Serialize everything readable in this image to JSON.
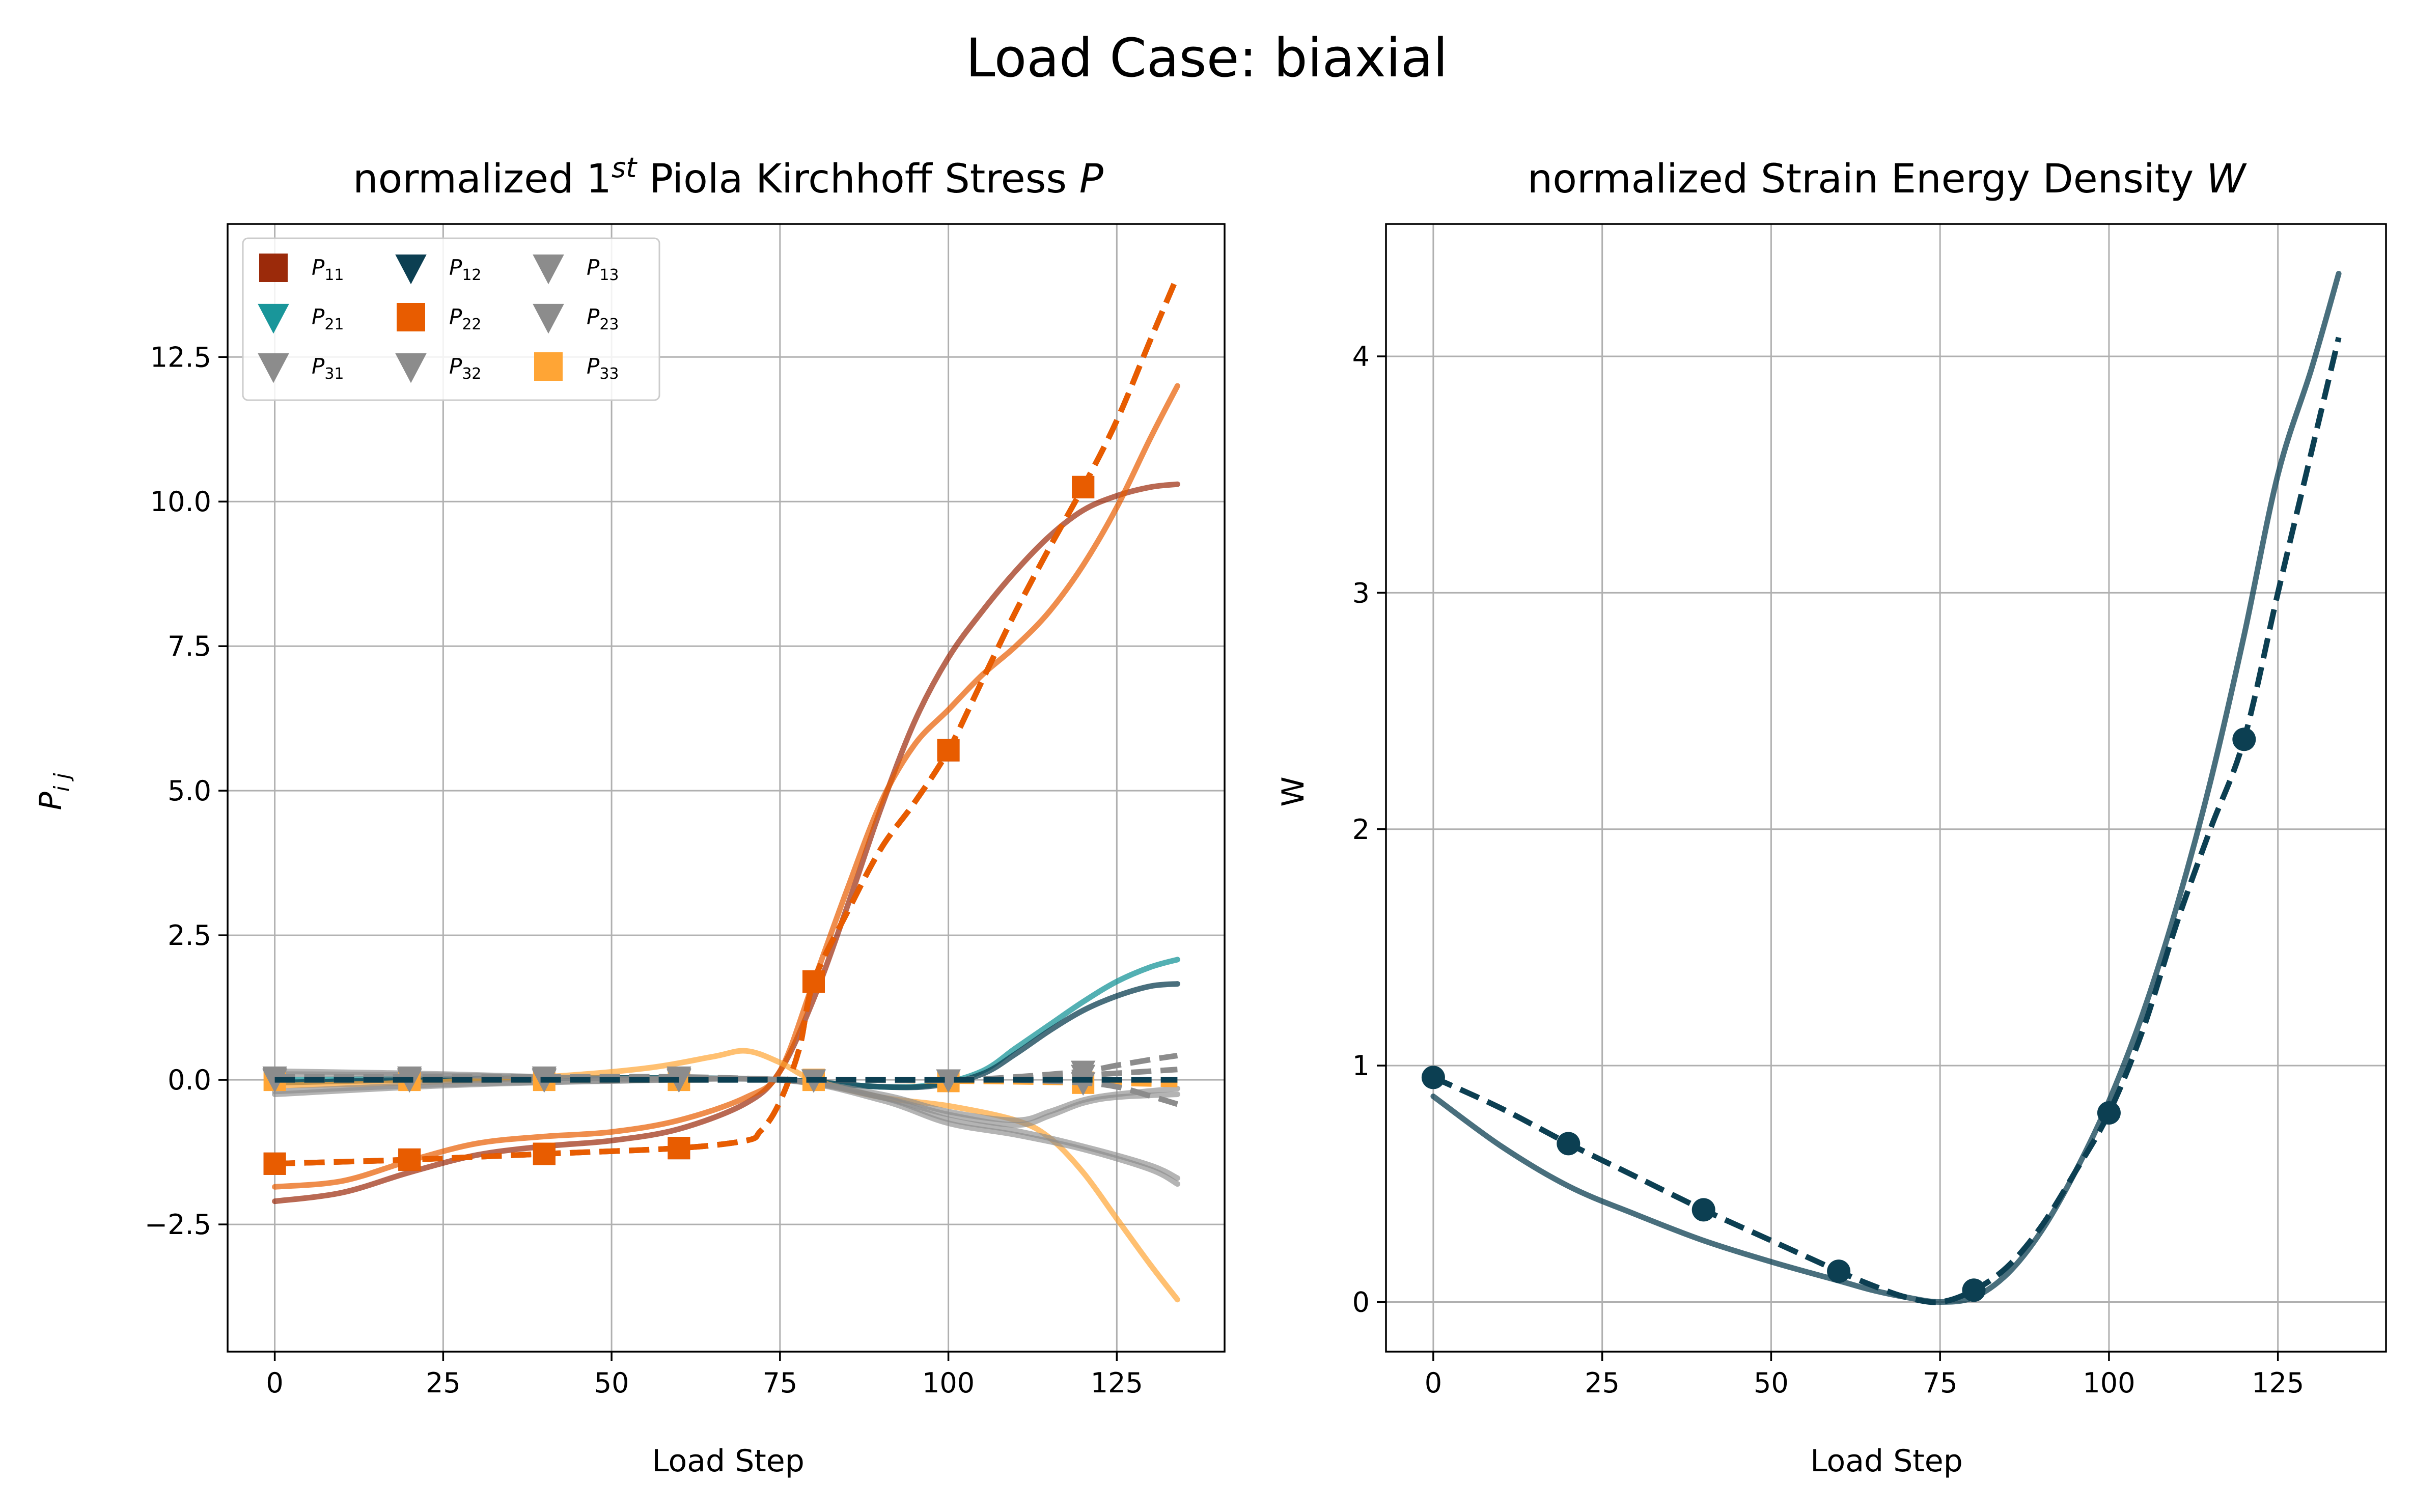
{
  "figure": {
    "title": "Load Case: biaxial"
  },
  "colors": {
    "P11": "#9b2a0a",
    "P12": "#0c3f52",
    "P21": "#19969a",
    "P22": "#e85c00",
    "P33": "#ffa535",
    "shear": "#8c8c8c",
    "W": "#0c3f52"
  },
  "chart_data": [
    {
      "type": "line",
      "title_prefix": "normalized 1",
      "title_sup": "st",
      "title_suffix": " Piola Kirchhoff Stress ",
      "title_symbol": "P",
      "xlabel": "Load Step",
      "ylabel_main": "P",
      "ylabel_sub": "i j",
      "xlim": [
        -7,
        141
      ],
      "ylim": [
        -4.7,
        14.8
      ],
      "xticks": [
        0,
        25,
        50,
        75,
        100,
        125
      ],
      "yticks": [
        -2.5,
        0.0,
        2.5,
        5.0,
        7.5,
        10.0,
        12.5
      ],
      "ytick_labels": [
        "−2.5",
        "0.0",
        "2.5",
        "5.0",
        "7.5",
        "10.0",
        "12.5"
      ],
      "grid": true,
      "legend": {
        "placement": "upper-left",
        "entries": [
          {
            "main": "P",
            "sub": "11",
            "marker": "square",
            "color": "#9b2a0a"
          },
          {
            "main": "P",
            "sub": "12",
            "marker": "triangle-down",
            "color": "#0c3f52"
          },
          {
            "main": "P",
            "sub": "13",
            "marker": "triangle-down",
            "color": "#8c8c8c"
          },
          {
            "main": "P",
            "sub": "21",
            "marker": "triangle-down",
            "color": "#19969a"
          },
          {
            "main": "P",
            "sub": "22",
            "marker": "square",
            "color": "#e85c00"
          },
          {
            "main": "P",
            "sub": "23",
            "marker": "triangle-down",
            "color": "#8c8c8c"
          },
          {
            "main": "P",
            "sub": "31",
            "marker": "triangle-down",
            "color": "#8c8c8c"
          },
          {
            "main": "P",
            "sub": "32",
            "marker": "triangle-down",
            "color": "#8c8c8c"
          },
          {
            "main": "P",
            "sub": "33",
            "marker": "square",
            "color": "#ffa535"
          }
        ]
      },
      "model_series": [
        {
          "color": "#9b2a0a",
          "opacity": 0.7,
          "x": [
            0,
            10,
            20,
            30,
            40,
            50,
            60,
            70,
            75,
            80,
            85,
            90,
            95,
            100,
            105,
            110,
            115,
            120,
            125,
            130,
            134
          ],
          "y": [
            -2.1,
            -1.95,
            -1.6,
            -1.3,
            -1.15,
            -1.05,
            -0.85,
            -0.4,
            0.15,
            1.4,
            3.0,
            4.7,
            6.2,
            7.3,
            8.1,
            8.8,
            9.4,
            9.85,
            10.1,
            10.25,
            10.3
          ]
        },
        {
          "color": "#e85c00",
          "opacity": 0.7,
          "x": [
            0,
            10,
            20,
            30,
            40,
            50,
            60,
            70,
            75,
            80,
            85,
            90,
            95,
            100,
            105,
            110,
            115,
            120,
            125,
            130,
            134
          ],
          "y": [
            -1.85,
            -1.75,
            -1.4,
            -1.1,
            -0.98,
            -0.9,
            -0.7,
            -0.3,
            0.15,
            1.7,
            3.3,
            4.8,
            5.8,
            6.4,
            7.0,
            7.5,
            8.1,
            8.9,
            9.9,
            11.1,
            12.0
          ]
        },
        {
          "color": "#19969a",
          "opacity": 0.75,
          "x": [
            0,
            20,
            40,
            60,
            75,
            90,
            98,
            105,
            110,
            115,
            120,
            125,
            130,
            134
          ],
          "y": [
            0.0,
            0.02,
            0.03,
            0.03,
            0.0,
            -0.12,
            -0.08,
            0.15,
            0.55,
            0.95,
            1.35,
            1.7,
            1.95,
            2.08
          ]
        },
        {
          "color": "#0c3f52",
          "opacity": 0.75,
          "x": [
            0,
            20,
            40,
            60,
            75,
            90,
            98,
            105,
            110,
            115,
            120,
            125,
            130,
            134
          ],
          "y": [
            -0.05,
            0.0,
            0.03,
            0.03,
            0.0,
            -0.12,
            -0.1,
            0.1,
            0.45,
            0.85,
            1.2,
            1.45,
            1.62,
            1.66
          ]
        },
        {
          "color": "#ffa535",
          "opacity": 0.7,
          "x": [
            0,
            20,
            40,
            55,
            65,
            70,
            75,
            80,
            90,
            100,
            110,
            115,
            120,
            125,
            130,
            134
          ],
          "y": [
            -0.1,
            -0.05,
            0.05,
            0.2,
            0.4,
            0.5,
            0.3,
            0.0,
            -0.3,
            -0.45,
            -0.7,
            -1.0,
            -1.6,
            -2.4,
            -3.2,
            -3.8
          ]
        },
        {
          "color": "#8c8c8c",
          "opacity": 0.65,
          "x": [
            0,
            25,
            50,
            75,
            90,
            100,
            110,
            120,
            130,
            134
          ],
          "y": [
            -0.25,
            -0.1,
            -0.02,
            0.0,
            -0.35,
            -0.75,
            -0.95,
            -1.2,
            -1.55,
            -1.8
          ]
        },
        {
          "color": "#8c8c8c",
          "opacity": 0.65,
          "x": [
            0,
            25,
            50,
            75,
            90,
            100,
            110,
            120,
            130,
            134
          ],
          "y": [
            -0.2,
            -0.08,
            -0.02,
            0.0,
            -0.3,
            -0.68,
            -0.88,
            -1.15,
            -1.48,
            -1.7
          ]
        },
        {
          "color": "#8c8c8c",
          "opacity": 0.65,
          "x": [
            0,
            25,
            50,
            75,
            90,
            100,
            110,
            115,
            120,
            125,
            134
          ],
          "y": [
            0.15,
            0.1,
            0.02,
            0.0,
            -0.3,
            -0.6,
            -0.78,
            -0.62,
            -0.4,
            -0.3,
            -0.25
          ]
        },
        {
          "color": "#8c8c8c",
          "opacity": 0.65,
          "x": [
            0,
            25,
            50,
            75,
            90,
            100,
            110,
            115,
            120,
            125,
            134
          ],
          "y": [
            0.1,
            0.08,
            0.02,
            0.0,
            -0.25,
            -0.55,
            -0.7,
            -0.55,
            -0.35,
            -0.25,
            -0.15
          ]
        }
      ],
      "reference_series": [
        {
          "color": "#9b2a0a",
          "marker": "square",
          "x": [
            0,
            20,
            40,
            60,
            70,
            72,
            74,
            76,
            78,
            80,
            85,
            90,
            95,
            100,
            105,
            110,
            115,
            120,
            125,
            130,
            134
          ],
          "y": [
            -1.45,
            -1.38,
            -1.28,
            -1.18,
            -1.05,
            -0.9,
            -0.6,
            -0.1,
            0.6,
            1.7,
            2.9,
            4.0,
            4.8,
            5.7,
            6.9,
            8.1,
            9.2,
            10.25,
            11.4,
            12.8,
            13.9
          ],
          "marker_x": [
            0,
            20,
            40,
            60,
            80,
            100,
            120
          ],
          "marker_y": [
            -1.45,
            -1.38,
            -1.28,
            -1.18,
            1.7,
            5.7,
            10.25
          ]
        },
        {
          "color": "#e85c00",
          "marker": "square",
          "x": [
            0,
            20,
            40,
            60,
            70,
            72,
            74,
            76,
            78,
            80,
            85,
            90,
            95,
            100,
            105,
            110,
            115,
            120,
            125,
            130,
            134
          ],
          "y": [
            -1.45,
            -1.38,
            -1.28,
            -1.18,
            -1.05,
            -0.9,
            -0.6,
            -0.1,
            0.6,
            1.7,
            2.9,
            4.0,
            4.8,
            5.7,
            6.9,
            8.1,
            9.2,
            10.25,
            11.4,
            12.8,
            13.9
          ],
          "marker_x": [
            0,
            20,
            40,
            60,
            80,
            100,
            120
          ],
          "marker_y": [
            -1.45,
            -1.38,
            -1.28,
            -1.18,
            1.7,
            5.7,
            10.25
          ]
        },
        {
          "color": "#ffa535",
          "marker": "square",
          "x": [
            0,
            20,
            40,
            60,
            80,
            100,
            120,
            134
          ],
          "y": [
            0.0,
            0.0,
            0.0,
            0.0,
            0.0,
            -0.02,
            -0.05,
            -0.08
          ],
          "marker_x": [
            0,
            20,
            40,
            60,
            80,
            100,
            120
          ],
          "marker_y": [
            0.0,
            0.0,
            0.0,
            0.0,
            0.0,
            -0.02,
            -0.05
          ]
        },
        {
          "color": "#8c8c8c",
          "marker": "triangle-down",
          "x": [
            0,
            20,
            40,
            60,
            80,
            100,
            110,
            120,
            125,
            130,
            134
          ],
          "y": [
            0.05,
            0.05,
            0.05,
            0.05,
            0.0,
            0.0,
            0.05,
            0.15,
            0.25,
            0.35,
            0.42
          ],
          "marker_x": [
            0,
            20,
            40,
            60,
            80,
            100,
            120
          ],
          "marker_y": [
            0.05,
            0.05,
            0.05,
            0.05,
            0.0,
            0.0,
            0.15
          ]
        },
        {
          "color": "#8c8c8c",
          "marker": "triangle-down",
          "x": [
            0,
            20,
            40,
            60,
            80,
            100,
            110,
            120,
            125,
            130,
            134
          ],
          "y": [
            0.02,
            0.02,
            0.02,
            0.02,
            0.0,
            0.0,
            0.0,
            -0.05,
            -0.12,
            -0.28,
            -0.42
          ],
          "marker_x": [
            0,
            20,
            40,
            60,
            80,
            100,
            120
          ],
          "marker_y": [
            0.02,
            0.02,
            0.02,
            0.02,
            0.0,
            0.0,
            -0.05
          ]
        },
        {
          "color": "#8c8c8c",
          "marker": "triangle-down",
          "x": [
            0,
            20,
            40,
            60,
            80,
            100,
            110,
            120,
            130,
            134
          ],
          "y": [
            0.0,
            0.0,
            0.0,
            0.0,
            0.0,
            0.0,
            0.02,
            0.08,
            0.15,
            0.18
          ],
          "marker_x": [
            0,
            20,
            40,
            60,
            80,
            100,
            120
          ],
          "marker_y": [
            0.0,
            0.0,
            0.0,
            0.0,
            0.0,
            0.0,
            0.08
          ]
        },
        {
          "color": "#0c3f52",
          "marker": "triangle-down",
          "x": [
            0,
            20,
            40,
            60,
            80,
            100,
            120,
            134
          ],
          "y": [
            0.0,
            0.0,
            0.0,
            0.0,
            0.0,
            0.0,
            0.0,
            0.0
          ],
          "marker_x": [],
          "marker_y": []
        }
      ]
    },
    {
      "type": "line",
      "title_prefix": "normalized Strain Energy Density ",
      "title_symbol": "W",
      "xlabel": "Load Step",
      "ylabel": "W",
      "xlim": [
        -7,
        141
      ],
      "ylim": [
        -0.21,
        4.56
      ],
      "xticks": [
        0,
        25,
        50,
        75,
        100,
        125
      ],
      "yticks": [
        0,
        1,
        2,
        3,
        4
      ],
      "grid": true,
      "model_series": [
        {
          "color": "#0c3f52",
          "opacity": 0.75,
          "x": [
            0,
            10,
            20,
            30,
            40,
            50,
            60,
            65,
            70,
            75,
            80,
            85,
            90,
            95,
            100,
            105,
            110,
            115,
            120,
            125,
            130,
            134
          ],
          "y": [
            0.87,
            0.66,
            0.49,
            0.37,
            0.26,
            0.17,
            0.09,
            0.05,
            0.02,
            0.0,
            0.02,
            0.12,
            0.3,
            0.55,
            0.85,
            1.22,
            1.67,
            2.2,
            2.82,
            3.5,
            3.95,
            4.35
          ]
        }
      ],
      "reference_series": [
        {
          "color": "#0c3f52",
          "marker": "circle",
          "x": [
            0,
            10,
            20,
            30,
            40,
            50,
            60,
            65,
            70,
            75,
            80,
            85,
            90,
            95,
            100,
            105,
            110,
            115,
            120,
            125,
            130,
            134
          ],
          "y": [
            0.95,
            0.82,
            0.67,
            0.53,
            0.39,
            0.26,
            0.13,
            0.07,
            0.02,
            0.0,
            0.05,
            0.15,
            0.32,
            0.55,
            0.8,
            1.15,
            1.6,
            2.0,
            2.38,
            3.0,
            3.6,
            4.08
          ],
          "marker_x": [
            0,
            20,
            40,
            60,
            80,
            100,
            120
          ],
          "marker_y": [
            0.95,
            0.67,
            0.39,
            0.13,
            0.05,
            0.8,
            2.38
          ]
        }
      ]
    }
  ]
}
